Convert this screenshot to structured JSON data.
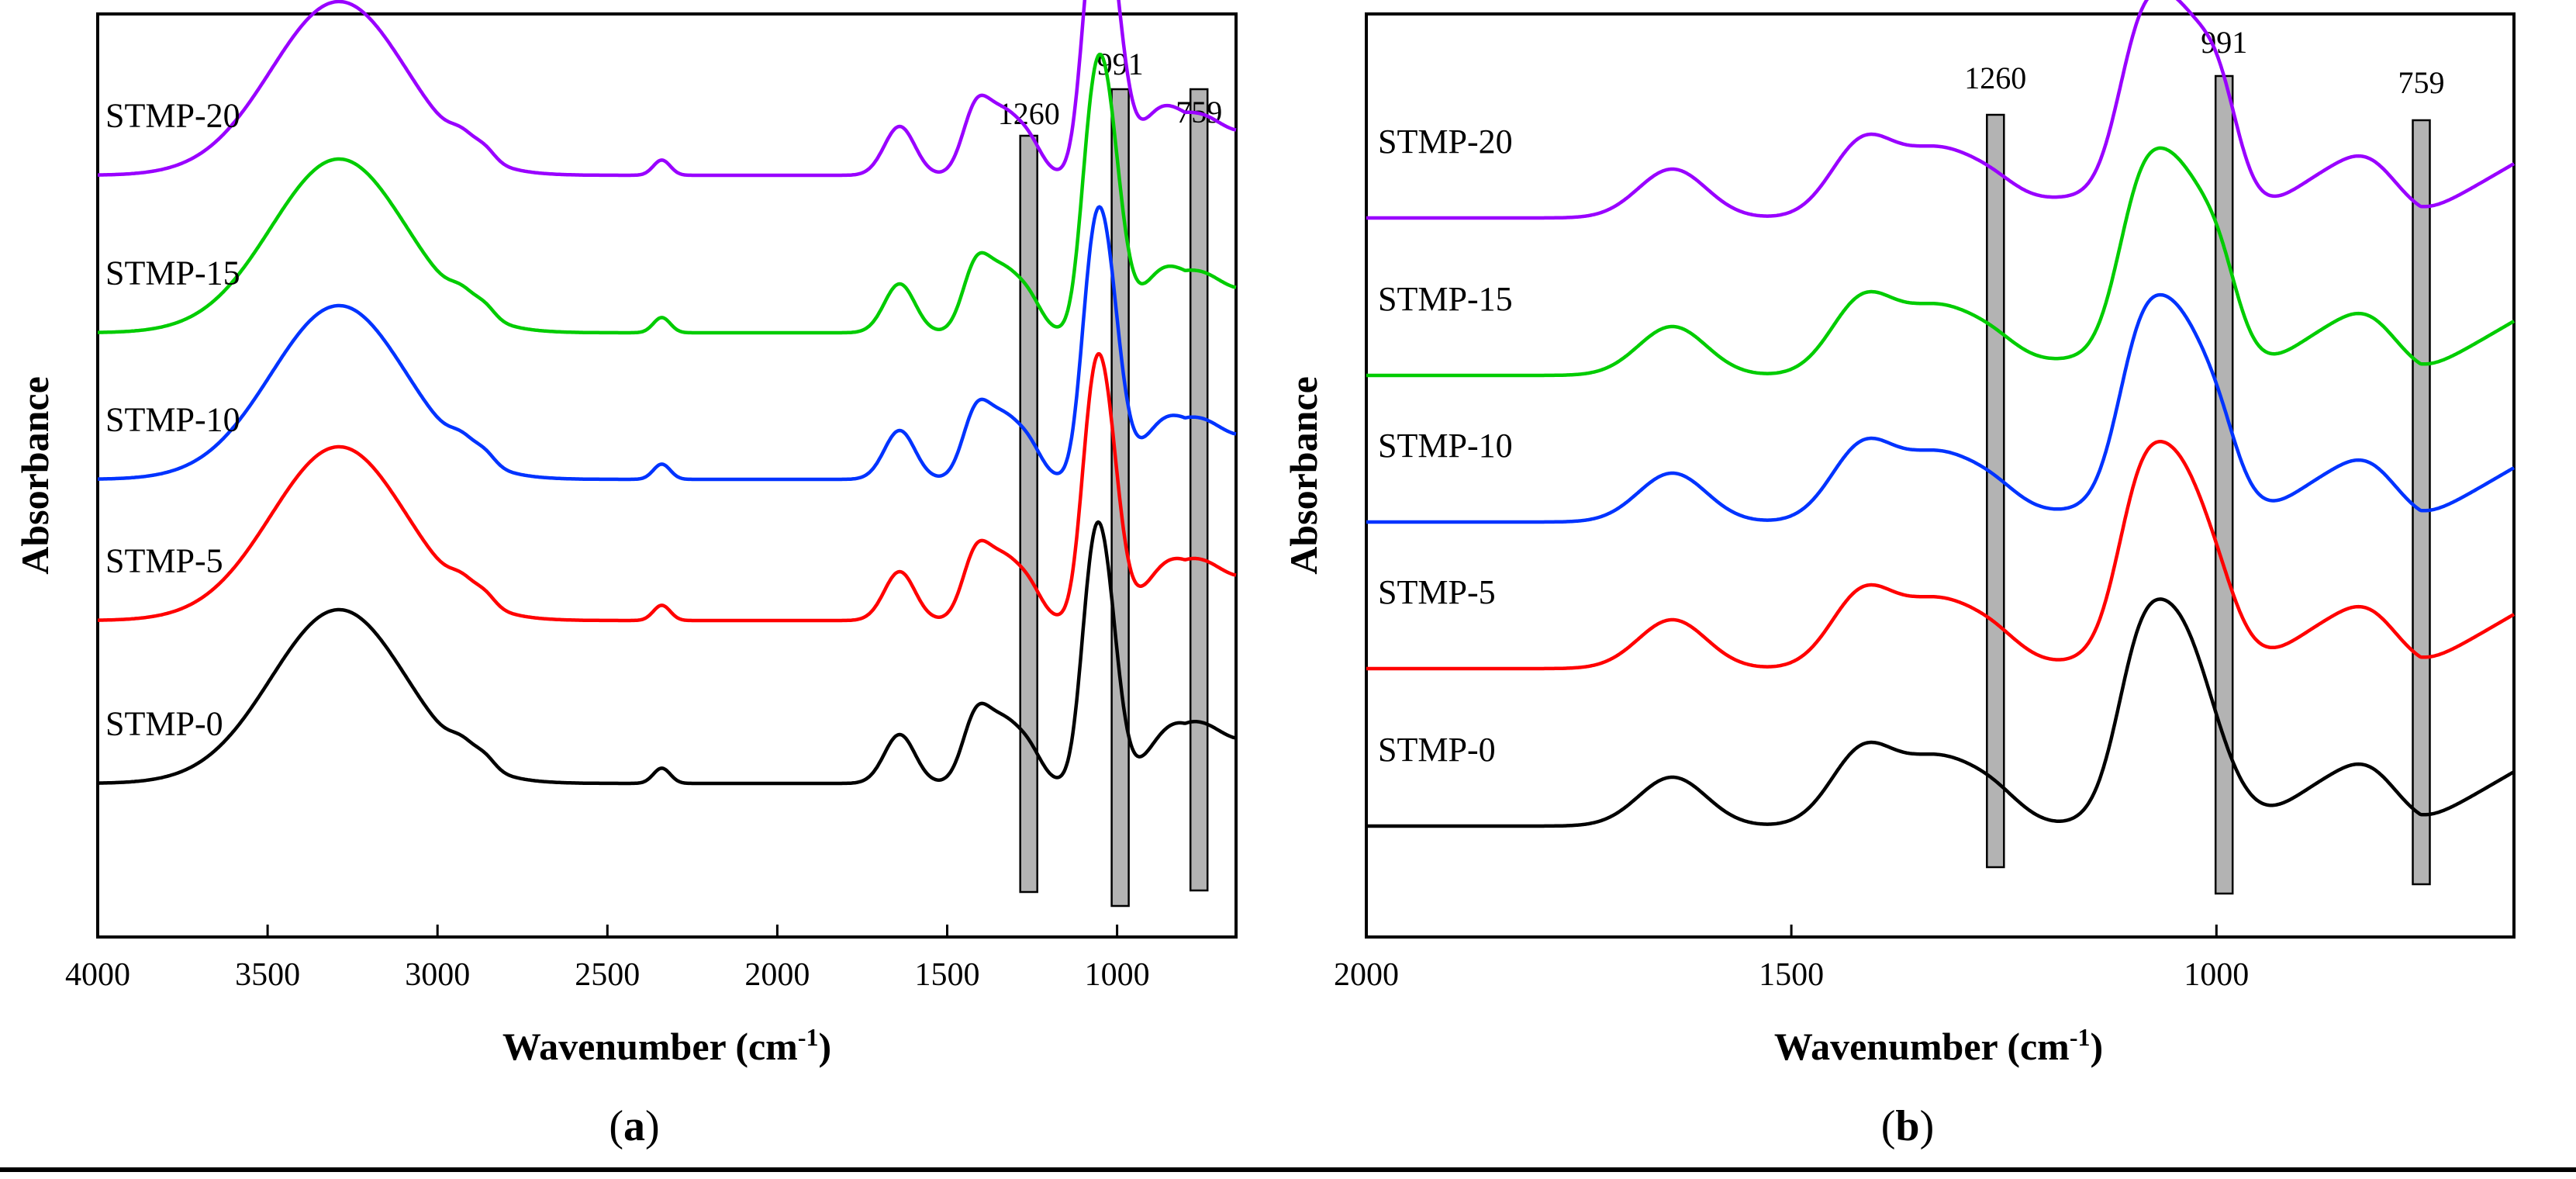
{
  "chart_data": [
    {
      "panel": "a",
      "panel_label_open": "(",
      "panel_label_letter": "a",
      "panel_label_close": ")",
      "type": "line",
      "title": "",
      "xlabel_main": "Wavenumber (cm",
      "xlabel_sup": "-1",
      "xlabel_close": ")",
      "ylabel": "Absorbance",
      "xlim": [
        4000,
        650
      ],
      "x_reversed": true,
      "xticks": [
        4000,
        3500,
        3000,
        2500,
        2000,
        1500,
        1000
      ],
      "y_ticks_shown": false,
      "bands": [
        {
          "label": "1260",
          "center": 1260
        },
        {
          "label": "991",
          "center": 991
        },
        {
          "label": "759",
          "center": 759
        }
      ],
      "series": [
        {
          "name": "STMP-20",
          "color": "#9900ff",
          "baseline": 0.56,
          "spectrum": "full"
        },
        {
          "name": "STMP-15",
          "color": "#00cc00",
          "baseline": 0.415,
          "spectrum": "full"
        },
        {
          "name": "STMP-10",
          "color": "#0033ff",
          "baseline": 0.28,
          "spectrum": "full"
        },
        {
          "name": "STMP-5",
          "color": "#ff0000",
          "baseline": 0.15,
          "spectrum": "full"
        },
        {
          "name": "STMP-0",
          "color": "#000000",
          "baseline": 0.0,
          "spectrum": "full"
        }
      ]
    },
    {
      "panel": "b",
      "panel_label_open": "(",
      "panel_label_letter": "b",
      "panel_label_close": ")",
      "type": "line",
      "title": "",
      "xlabel_main": "Wavenumber (cm",
      "xlabel_sup": "-1",
      "xlabel_close": ")",
      "ylabel": "Absorbance",
      "xlim": [
        2000,
        650
      ],
      "x_reversed": true,
      "xticks": [
        2000,
        1500,
        1000
      ],
      "y_ticks_shown": false,
      "bands": [
        {
          "label": "1260",
          "center": 1260
        },
        {
          "label": "991",
          "center": 991
        },
        {
          "label": "759",
          "center": 759
        }
      ],
      "series": [
        {
          "name": "STMP-20",
          "color": "#9900ff",
          "baseline": 0.56,
          "spectrum": "fingerprint"
        },
        {
          "name": "STMP-15",
          "color": "#00cc00",
          "baseline": 0.415,
          "spectrum": "fingerprint"
        },
        {
          "name": "STMP-10",
          "color": "#0033ff",
          "baseline": 0.28,
          "spectrum": "fingerprint"
        },
        {
          "name": "STMP-5",
          "color": "#ff0000",
          "baseline": 0.145,
          "spectrum": "fingerprint"
        },
        {
          "name": "STMP-0",
          "color": "#000000",
          "baseline": 0.0,
          "spectrum": "fingerprint"
        }
      ]
    }
  ]
}
